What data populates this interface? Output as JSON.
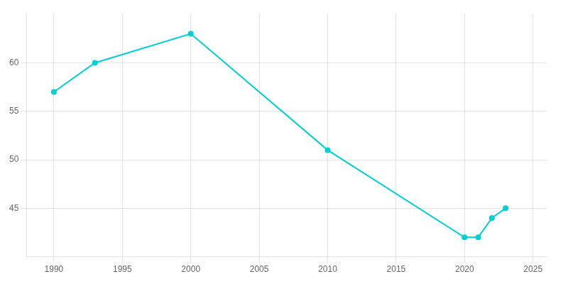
{
  "chart_data": {
    "type": "line",
    "x": [
      1990,
      1993,
      2000,
      2010,
      2020,
      2021,
      2022,
      2023
    ],
    "values": [
      57,
      60,
      63,
      51,
      42,
      42,
      44,
      45
    ],
    "color": "#00CED1",
    "marker": "o",
    "xlim": [
      1988,
      2026
    ],
    "ylim": [
      40,
      65
    ],
    "xticks": [
      1990,
      1995,
      2000,
      2005,
      2010,
      2015,
      2020,
      2025
    ],
    "yticks": [
      45,
      50,
      55,
      60
    ],
    "grid": true
  }
}
